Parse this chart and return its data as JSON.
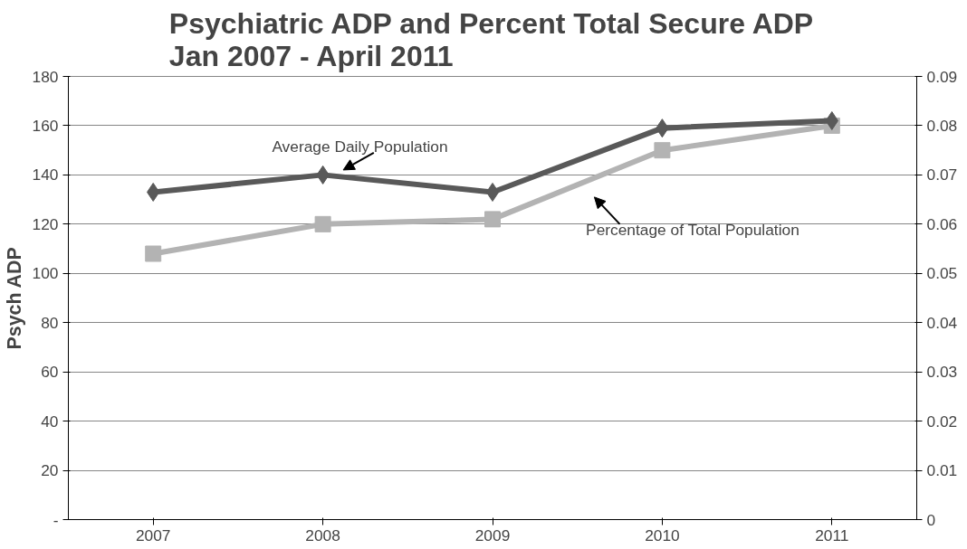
{
  "chart_data": {
    "type": "line",
    "title": "Psychiatric ADP and Percent Total Secure ADP\nJan 2007 - April 2011",
    "ylabel": "Psych ADP",
    "categories": [
      "2007",
      "2008",
      "2009",
      "2010",
      "2011"
    ],
    "series": [
      {
        "name": "Average Daily Population",
        "color": "#595959",
        "marker": "diamond",
        "values": [
          133,
          140,
          133,
          159,
          162
        ]
      },
      {
        "name": "Percentage of Total Population",
        "color": "#b3b3b3",
        "marker": "square",
        "axis": "y2",
        "values": [
          0.054,
          0.06,
          0.061,
          0.075,
          0.08
        ]
      }
    ],
    "ylim": [
      0,
      180
    ],
    "yticks": [
      {
        "value": 0,
        "label": "-"
      },
      20,
      40,
      60,
      80,
      100,
      120,
      140,
      160,
      180
    ],
    "y2lim": [
      0,
      0.09
    ],
    "y2ticks": [
      0,
      0.01,
      0.02,
      0.03,
      0.04,
      0.05,
      0.06,
      0.07,
      0.08,
      0.09
    ],
    "grid": "y"
  }
}
